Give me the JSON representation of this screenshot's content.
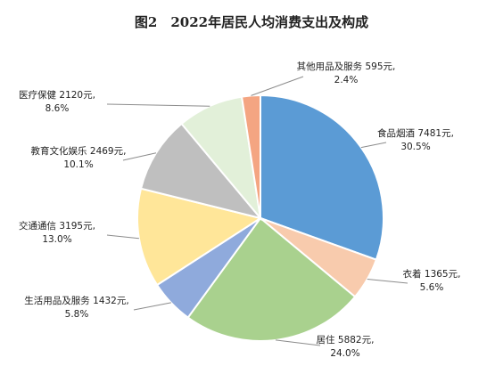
{
  "chart_data": {
    "type": "pie",
    "title": "图2　2022年居民人均消费支出及构成",
    "unit": "元",
    "slices": [
      {
        "name": "食品烟酒",
        "value_label": "7481元,",
        "value": 7481,
        "pct_label": "30.5%",
        "pct": 30.5,
        "color": "#5b9bd5"
      },
      {
        "name": "衣着",
        "value_label": "1365元,",
        "value": 1365,
        "pct_label": "5.6%",
        "pct": 5.6,
        "color": "#f8cbad"
      },
      {
        "name": "居住",
        "value_label": "5882元,",
        "value": 5882,
        "pct_label": "24.0%",
        "pct": 24.0,
        "color": "#a9d18e"
      },
      {
        "name": "生活用品及服务",
        "value_label": "1432元,",
        "value": 1432,
        "pct_label": "5.8%",
        "pct": 5.8,
        "color": "#8faadc"
      },
      {
        "name": "交通通信",
        "value_label": "3195元,",
        "value": 3195,
        "pct_label": "13.0%",
        "pct": 13.0,
        "color": "#ffe699"
      },
      {
        "name": "教育文化娱乐",
        "value_label": "2469元,",
        "value": 2469,
        "pct_label": "10.1%",
        "pct": 10.1,
        "color": "#bfbfbf"
      },
      {
        "name": "医疗保健",
        "value_label": "2120元,",
        "value": 2120,
        "pct_label": "8.6%",
        "pct": 8.6,
        "color": "#e2f0d9"
      },
      {
        "name": "其他用品及服务",
        "value_label": "595元,",
        "value": 595,
        "pct_label": "2.4%",
        "pct": 2.4,
        "color": "#f4a582"
      }
    ]
  }
}
